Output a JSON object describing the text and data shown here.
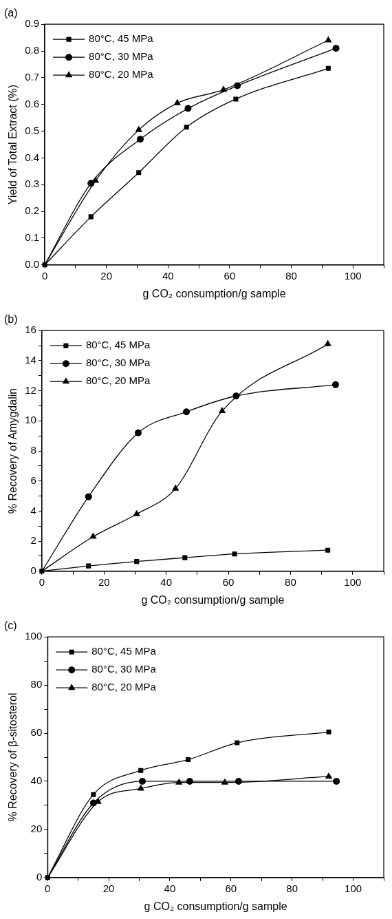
{
  "chart_data": [
    {
      "type": "line",
      "title": "(a)",
      "xlabel": "g CO₂ consumption/g sample",
      "ylabel": "Yield of Total Extract (%)",
      "xlim": [
        0,
        110
      ],
      "xticks": [
        0,
        {
          "value": 10,
          "label": null
        },
        20,
        {
          "value": 30,
          "label": null
        },
        40,
        {
          "value": 50,
          "label": null
        },
        60,
        {
          "value": 70,
          "label": null
        },
        80,
        {
          "value": 90,
          "label": null
        },
        100,
        {
          "value": 110,
          "label": null
        }
      ],
      "ylim": [
        0,
        0.9
      ],
      "yticks": [
        {
          "value": 0,
          "label": "0.0"
        },
        0.1,
        0.2,
        0.3,
        0.4,
        0.5,
        0.6,
        0.7,
        0.8,
        0.9
      ],
      "legend": "top left",
      "grid": false,
      "series": [
        {
          "name": "80°C, 45 MPa",
          "color": "#000000",
          "marker": "square",
          "x": [
            0,
            15,
            30.5,
            46,
            62,
            92
          ],
          "values": [
            0,
            0.18,
            0.345,
            0.515,
            0.62,
            0.735
          ]
        },
        {
          "name": "80°C, 30 MPa",
          "color": "#000000",
          "marker": "circle",
          "x": [
            0,
            15,
            31,
            46.5,
            62.5,
            94.5
          ],
          "values": [
            0,
            0.305,
            0.47,
            0.585,
            0.67,
            0.81
          ]
        },
        {
          "name": "80°C, 20 MPa",
          "color": "#000000",
          "marker": "triangle",
          "x": [
            0,
            16.5,
            30.5,
            43,
            58,
            92
          ],
          "values": [
            0,
            0.315,
            0.505,
            0.605,
            0.655,
            0.84
          ]
        }
      ]
    },
    {
      "type": "line",
      "title": "(b)",
      "xlabel": "g CO₂ consumption/g sample",
      "ylabel": "% Recovery of Amygdalin",
      "xlim": [
        0,
        110
      ],
      "xticks": [
        0,
        {
          "value": 10,
          "label": null
        },
        20,
        {
          "value": 30,
          "label": null
        },
        40,
        {
          "value": 50,
          "label": null
        },
        60,
        {
          "value": 70,
          "label": null
        },
        80,
        {
          "value": 90,
          "label": null
        },
        100,
        {
          "value": 110,
          "label": null
        }
      ],
      "ylim": [
        0,
        16
      ],
      "yticks": [
        0,
        {
          "value": 1,
          "label": null
        },
        2,
        {
          "value": 3,
          "label": null
        },
        4,
        {
          "value": 5,
          "label": null
        },
        6,
        {
          "value": 7,
          "label": null
        },
        8,
        {
          "value": 9,
          "label": null
        },
        10,
        {
          "value": 11,
          "label": null
        },
        12,
        {
          "value": 13,
          "label": null
        },
        14,
        {
          "value": 15,
          "label": null
        },
        16
      ],
      "legend": "top left",
      "grid": false,
      "series": [
        {
          "name": "80°C, 45 MPa",
          "color": "#000000",
          "marker": "square",
          "x": [
            0,
            15,
            30.5,
            46,
            62,
            92
          ],
          "values": [
            0,
            0.35,
            0.65,
            0.9,
            1.15,
            1.4
          ]
        },
        {
          "name": "80°C, 30 MPa",
          "color": "#000000",
          "marker": "circle",
          "x": [
            0,
            15,
            31,
            46.5,
            62.5,
            94.5
          ],
          "values": [
            0,
            4.95,
            9.2,
            10.6,
            11.65,
            12.4
          ]
        },
        {
          "name": "80°C, 20 MPa",
          "color": "#000000",
          "marker": "triangle",
          "x": [
            0,
            16.5,
            30.5,
            43,
            58,
            92
          ],
          "values": [
            0,
            2.3,
            3.8,
            5.5,
            10.65,
            15.1
          ]
        }
      ]
    },
    {
      "type": "line",
      "title": "(c)",
      "xlabel": "g CO₂ consumption/g sample",
      "ylabel": "% Recovery of β-sitosterol",
      "xlim": [
        0,
        110
      ],
      "xticks": [
        0,
        {
          "value": 10,
          "label": null
        },
        20,
        {
          "value": 30,
          "label": null
        },
        40,
        {
          "value": 50,
          "label": null
        },
        60,
        {
          "value": 70,
          "label": null
        },
        80,
        {
          "value": 90,
          "label": null
        },
        100,
        {
          "value": 110,
          "label": null
        }
      ],
      "ylim": [
        0,
        100
      ],
      "yticks": [
        0,
        {
          "value": 10,
          "label": null
        },
        20,
        {
          "value": 30,
          "label": null
        },
        40,
        {
          "value": 50,
          "label": null
        },
        60,
        {
          "value": 70,
          "label": null
        },
        80,
        {
          "value": 90,
          "label": null
        },
        100
      ],
      "legend": "top left",
      "grid": false,
      "series": [
        {
          "name": "80°C, 45 MPa",
          "color": "#000000",
          "marker": "square",
          "x": [
            0,
            15,
            30.5,
            46,
            62,
            92
          ],
          "values": [
            0,
            34.5,
            44.5,
            49,
            56,
            60.5
          ]
        },
        {
          "name": "80°C, 30 MPa",
          "color": "#000000",
          "marker": "circle",
          "x": [
            0,
            15,
            31,
            46.5,
            62.5,
            94.5
          ],
          "values": [
            0,
            31,
            40,
            40,
            40,
            40
          ]
        },
        {
          "name": "80°C, 20 MPa",
          "color": "#000000",
          "marker": "triangle",
          "x": [
            0,
            16.5,
            30.5,
            43,
            58,
            92
          ],
          "values": [
            0,
            31.5,
            37,
            39.5,
            39.5,
            42
          ]
        }
      ]
    }
  ]
}
